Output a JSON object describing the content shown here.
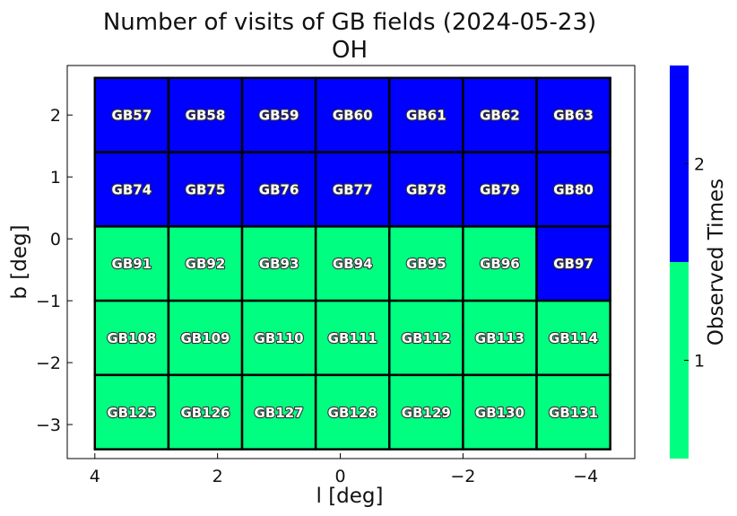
{
  "chart_data": {
    "type": "heatmap",
    "title": "Number of visits of GB fields (2024-05-23)",
    "subtitle": "OH",
    "xlabel": "l [deg]",
    "ylabel": "b [deg]",
    "xlim": [
      4.45,
      -4.8
    ],
    "ylim": [
      -3.55,
      2.8
    ],
    "x_ticks": [
      4,
      2,
      0,
      -2,
      -4
    ],
    "x_tick_labels": [
      "4",
      "2",
      "0",
      "−2",
      "−4"
    ],
    "y_ticks": [
      2,
      1,
      0,
      -1,
      -2,
      -3
    ],
    "y_tick_labels": [
      "2",
      "1",
      "0",
      "−1",
      "−2",
      "−3"
    ],
    "grid": false,
    "field_l_edges": [
      4.0,
      2.8,
      1.6,
      0.4,
      -0.8,
      -2.0,
      -3.2,
      -4.4
    ],
    "field_b_edges": [
      2.6,
      1.4,
      0.2,
      -1.0,
      -2.2,
      -3.4
    ],
    "fields": [
      [
        {
          "name": "GB57",
          "visits": 2
        },
        {
          "name": "GB58",
          "visits": 2
        },
        {
          "name": "GB59",
          "visits": 2
        },
        {
          "name": "GB60",
          "visits": 2
        },
        {
          "name": "GB61",
          "visits": 2
        },
        {
          "name": "GB62",
          "visits": 2
        },
        {
          "name": "GB63",
          "visits": 2
        }
      ],
      [
        {
          "name": "GB74",
          "visits": 2
        },
        {
          "name": "GB75",
          "visits": 2
        },
        {
          "name": "GB76",
          "visits": 2
        },
        {
          "name": "GB77",
          "visits": 2
        },
        {
          "name": "GB78",
          "visits": 2
        },
        {
          "name": "GB79",
          "visits": 2
        },
        {
          "name": "GB80",
          "visits": 2
        }
      ],
      [
        {
          "name": "GB91",
          "visits": 1
        },
        {
          "name": "GB92",
          "visits": 1
        },
        {
          "name": "GB93",
          "visits": 1
        },
        {
          "name": "GB94",
          "visits": 1
        },
        {
          "name": "GB95",
          "visits": 1
        },
        {
          "name": "GB96",
          "visits": 1
        },
        {
          "name": "GB97",
          "visits": 2
        }
      ],
      [
        {
          "name": "GB108",
          "visits": 1
        },
        {
          "name": "GB109",
          "visits": 1
        },
        {
          "name": "GB110",
          "visits": 1
        },
        {
          "name": "GB111",
          "visits": 1
        },
        {
          "name": "GB112",
          "visits": 1
        },
        {
          "name": "GB113",
          "visits": 1
        },
        {
          "name": "GB114",
          "visits": 1
        }
      ],
      [
        {
          "name": "GB125",
          "visits": 1
        },
        {
          "name": "GB126",
          "visits": 1
        },
        {
          "name": "GB127",
          "visits": 1
        },
        {
          "name": "GB128",
          "visits": 1
        },
        {
          "name": "GB129",
          "visits": 1
        },
        {
          "name": "GB130",
          "visits": 1
        },
        {
          "name": "GB131",
          "visits": 1
        }
      ]
    ],
    "colorbar": {
      "label": "Observed Times",
      "range": [
        0.5,
        2.5
      ],
      "ticks": [
        1,
        2
      ],
      "tick_labels": [
        "1",
        "2"
      ],
      "colors": {
        "1": "#00ff80",
        "2": "#0000ff"
      }
    }
  }
}
